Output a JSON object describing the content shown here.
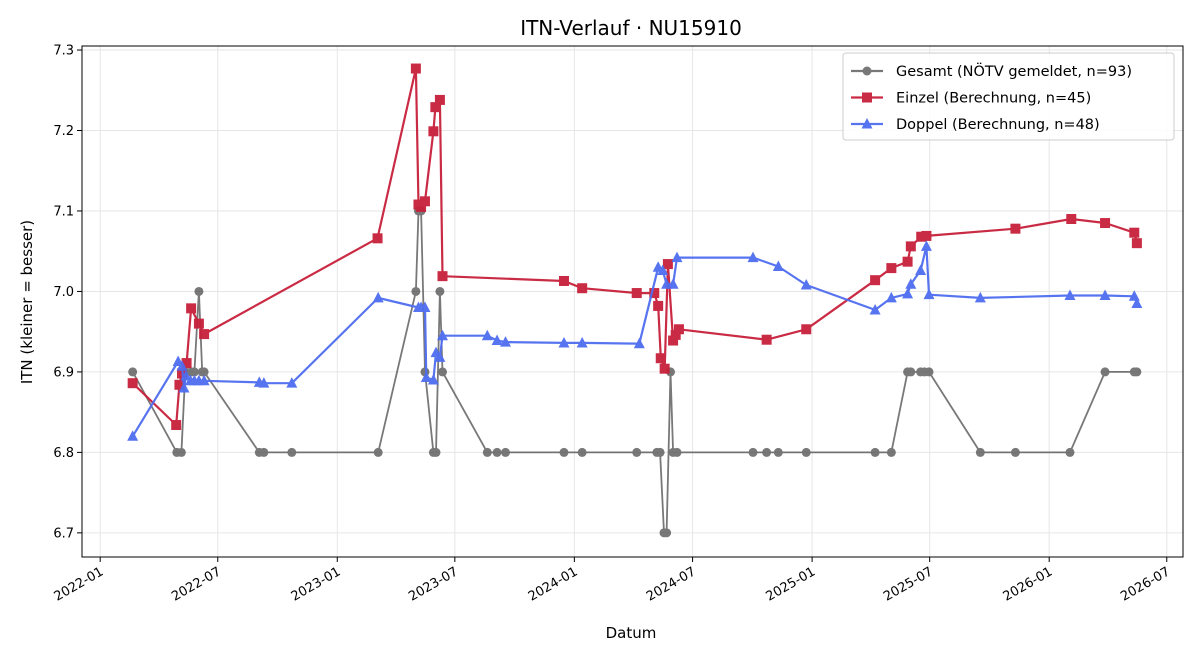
{
  "chart_data": {
    "type": "line",
    "title": "ITN-Verlauf · NU15910",
    "xlabel": "Datum",
    "ylabel": "ITN  (kleiner = besser)",
    "xlim": [
      "2021-12-04",
      "2026-07-26"
    ],
    "ylim": [
      6.67,
      7.305
    ],
    "grid": true,
    "legend_position": "top-right",
    "x_ticks": [
      "2022-01",
      "2022-07",
      "2023-01",
      "2023-07",
      "2024-01",
      "2024-07",
      "2025-01",
      "2025-07",
      "2026-01",
      "2026-07"
    ],
    "y_ticks": [
      6.7,
      6.8,
      6.9,
      7.0,
      7.1,
      7.2,
      7.3
    ],
    "series": [
      {
        "name": "Gesamt (NÖTV gemeldet, n=93)",
        "color": "#404040",
        "marker": "circle",
        "points": [
          [
            "2022-02-20",
            6.9
          ],
          [
            "2022-04-29",
            6.8
          ],
          [
            "2022-05-06",
            6.8
          ],
          [
            "2022-05-12",
            6.9
          ],
          [
            "2022-05-21",
            6.9
          ],
          [
            "2022-05-26",
            6.9
          ],
          [
            "2022-06-02",
            7.0
          ],
          [
            "2022-06-07",
            6.9
          ],
          [
            "2022-06-10",
            6.9
          ],
          [
            "2022-09-03",
            6.8
          ],
          [
            "2022-09-10",
            6.8
          ],
          [
            "2022-10-23",
            6.8
          ],
          [
            "2023-03-05",
            6.8
          ],
          [
            "2023-05-02",
            7.0
          ],
          [
            "2023-05-06",
            7.1
          ],
          [
            "2023-05-10",
            7.1
          ],
          [
            "2023-05-16",
            6.9
          ],
          [
            "2023-05-29",
            6.8
          ],
          [
            "2023-06-02",
            6.8
          ],
          [
            "2023-06-08",
            7.0
          ],
          [
            "2023-06-12",
            6.9
          ],
          [
            "2023-08-20",
            6.8
          ],
          [
            "2023-09-04",
            6.8
          ],
          [
            "2023-09-17",
            6.8
          ],
          [
            "2023-12-16",
            6.8
          ],
          [
            "2024-01-13",
            6.8
          ],
          [
            "2024-04-06",
            6.8
          ],
          [
            "2024-05-07",
            6.8
          ],
          [
            "2024-05-12",
            6.8
          ],
          [
            "2024-05-18",
            6.7
          ],
          [
            "2024-05-22",
            6.7
          ],
          [
            "2024-05-28",
            6.9
          ],
          [
            "2024-06-01",
            6.8
          ],
          [
            "2024-06-07",
            6.8
          ],
          [
            "2024-10-02",
            6.8
          ],
          [
            "2024-10-23",
            6.8
          ],
          [
            "2024-11-10",
            6.8
          ],
          [
            "2024-12-23",
            6.8
          ],
          [
            "2025-04-08",
            6.8
          ],
          [
            "2025-05-03",
            6.8
          ],
          [
            "2025-05-28",
            6.9
          ],
          [
            "2025-06-02",
            6.9
          ],
          [
            "2025-06-17",
            6.9
          ],
          [
            "2025-06-23",
            6.9
          ],
          [
            "2025-06-30",
            6.9
          ],
          [
            "2025-09-17",
            6.8
          ],
          [
            "2025-11-10",
            6.8
          ],
          [
            "2026-02-02",
            6.8
          ],
          [
            "2026-03-28",
            6.9
          ],
          [
            "2026-05-12",
            6.9
          ],
          [
            "2026-05-16",
            6.9
          ]
        ]
      },
      {
        "name": "Einzel (Berechnung, n=45)",
        "color": "#c8203a",
        "marker": "square",
        "points": [
          [
            "2022-02-20",
            6.886
          ],
          [
            "2022-04-28",
            6.834
          ],
          [
            "2022-05-03",
            6.884
          ],
          [
            "2022-05-07",
            6.898
          ],
          [
            "2022-05-14",
            6.911
          ],
          [
            "2022-05-21",
            6.979
          ],
          [
            "2022-06-02",
            6.96
          ],
          [
            "2022-06-10",
            6.947
          ],
          [
            "2023-03-04",
            7.066
          ],
          [
            "2023-05-02",
            7.277
          ],
          [
            "2023-05-06",
            7.108
          ],
          [
            "2023-05-10",
            7.105
          ],
          [
            "2023-05-16",
            7.112
          ],
          [
            "2023-05-29",
            7.199
          ],
          [
            "2023-06-01",
            7.229
          ],
          [
            "2023-06-08",
            7.238
          ],
          [
            "2023-06-12",
            7.019
          ],
          [
            "2023-12-16",
            7.013
          ],
          [
            "2024-01-13",
            7.004
          ],
          [
            "2024-04-06",
            6.998
          ],
          [
            "2024-05-03",
            6.998
          ],
          [
            "2024-05-09",
            6.982
          ],
          [
            "2024-05-13",
            6.917
          ],
          [
            "2024-05-19",
            6.904
          ],
          [
            "2024-05-24",
            7.034
          ],
          [
            "2024-06-01",
            6.939
          ],
          [
            "2024-06-05",
            6.946
          ],
          [
            "2024-06-10",
            6.953
          ],
          [
            "2024-10-23",
            6.94
          ],
          [
            "2024-12-23",
            6.953
          ],
          [
            "2025-04-08",
            7.014
          ],
          [
            "2025-05-03",
            7.029
          ],
          [
            "2025-05-28",
            7.037
          ],
          [
            "2025-06-02",
            7.056
          ],
          [
            "2025-06-18",
            7.068
          ],
          [
            "2025-06-26",
            7.069
          ],
          [
            "2025-11-10",
            7.078
          ],
          [
            "2026-02-04",
            7.09
          ],
          [
            "2026-03-28",
            7.085
          ],
          [
            "2026-05-12",
            7.073
          ],
          [
            "2026-05-16",
            7.06
          ]
        ]
      },
      {
        "name": "Doppel (Berechnung, n=48)",
        "color": "#4f6df0",
        "marker": "triangle",
        "points": [
          [
            "2022-02-20",
            6.82
          ],
          [
            "2022-05-01",
            6.913
          ],
          [
            "2022-05-07",
            6.907
          ],
          [
            "2022-05-10",
            6.88
          ],
          [
            "2022-05-13",
            6.895
          ],
          [
            "2022-05-20",
            6.889
          ],
          [
            "2022-05-26",
            6.889
          ],
          [
            "2022-06-02",
            6.889
          ],
          [
            "2022-06-10",
            6.889
          ],
          [
            "2022-09-03",
            6.887
          ],
          [
            "2022-09-10",
            6.886
          ],
          [
            "2022-10-23",
            6.886
          ],
          [
            "2023-03-05",
            6.992
          ],
          [
            "2023-05-06",
            6.98
          ],
          [
            "2023-05-10",
            6.98
          ],
          [
            "2023-05-16",
            6.98
          ],
          [
            "2023-05-18",
            6.893
          ],
          [
            "2023-05-29",
            6.89
          ],
          [
            "2023-06-02",
            6.924
          ],
          [
            "2023-06-08",
            6.918
          ],
          [
            "2023-06-12",
            6.945
          ],
          [
            "2023-08-20",
            6.945
          ],
          [
            "2023-09-04",
            6.939
          ],
          [
            "2023-09-17",
            6.937
          ],
          [
            "2023-12-16",
            6.936
          ],
          [
            "2024-01-13",
            6.936
          ],
          [
            "2024-04-10",
            6.935
          ],
          [
            "2024-05-09",
            7.03
          ],
          [
            "2024-05-16",
            7.026
          ],
          [
            "2024-05-22",
            7.009
          ],
          [
            "2024-06-01",
            7.009
          ],
          [
            "2024-06-07",
            7.042
          ],
          [
            "2024-10-02",
            7.042
          ],
          [
            "2024-11-10",
            7.031
          ],
          [
            "2024-12-23",
            7.008
          ],
          [
            "2025-04-08",
            6.977
          ],
          [
            "2025-05-03",
            6.992
          ],
          [
            "2025-05-28",
            6.997
          ],
          [
            "2025-06-02",
            7.009
          ],
          [
            "2025-06-17",
            7.026
          ],
          [
            "2025-06-26",
            7.056
          ],
          [
            "2025-06-30",
            6.996
          ],
          [
            "2025-09-17",
            6.992
          ],
          [
            "2026-02-02",
            6.995
          ],
          [
            "2026-03-28",
            6.995
          ],
          [
            "2026-05-12",
            6.994
          ],
          [
            "2026-05-16",
            6.985
          ]
        ]
      }
    ]
  }
}
